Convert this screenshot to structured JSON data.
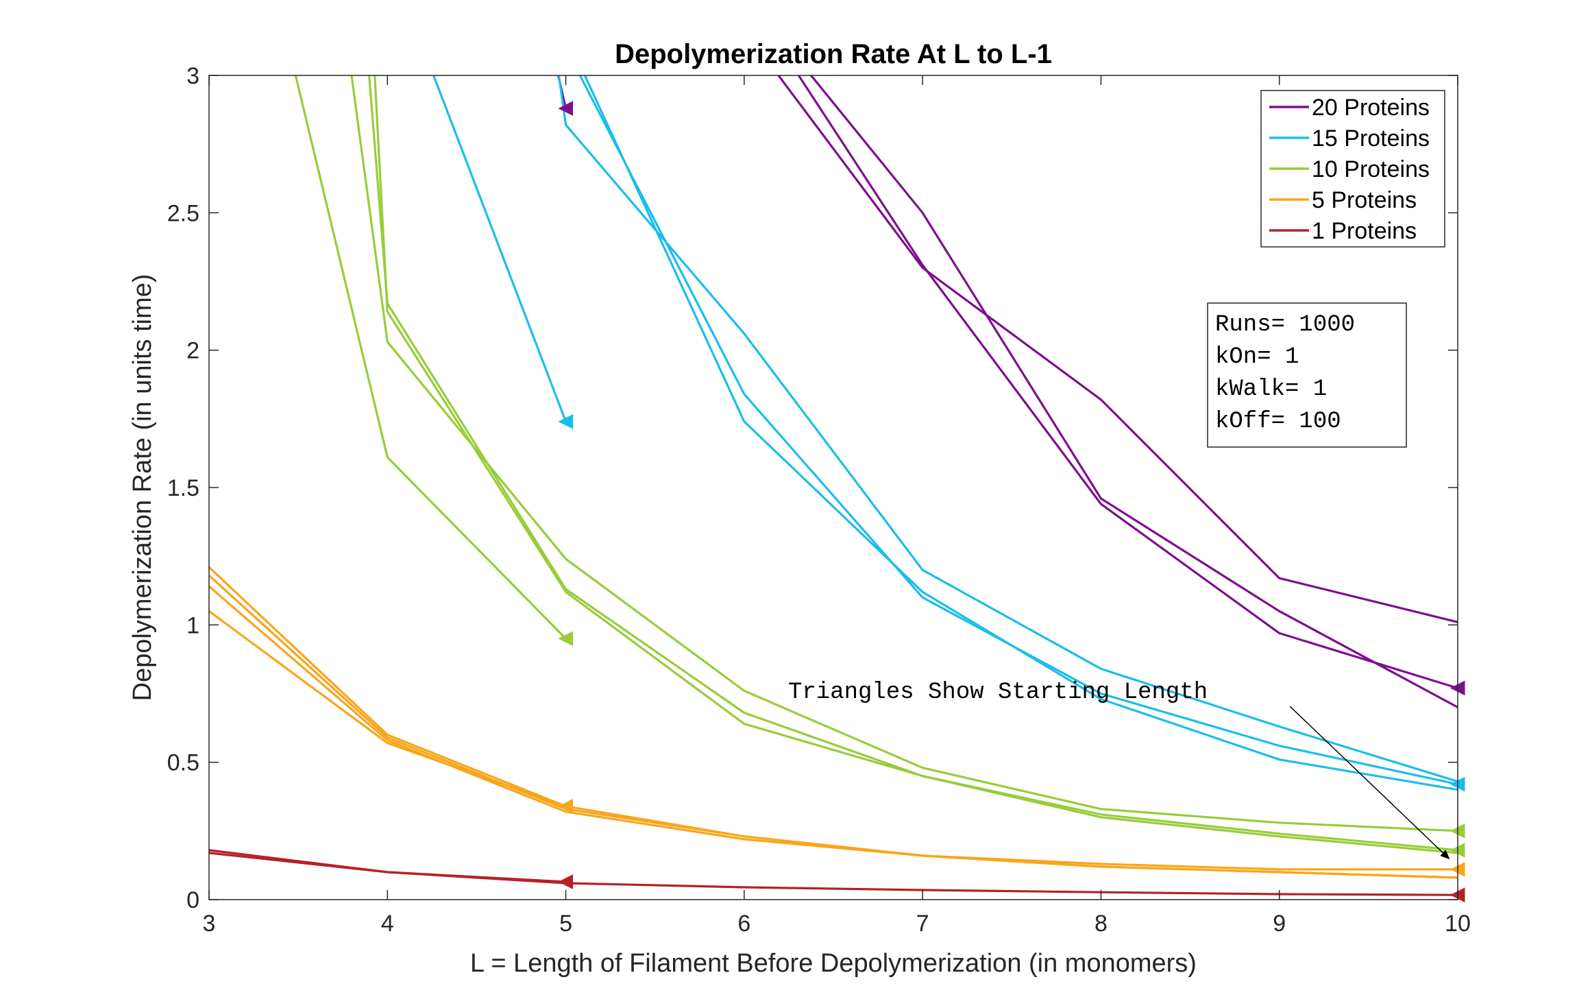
{
  "chart_data": {
    "type": "line",
    "title": "Depolymerization Rate At L to L-1",
    "xlabel": "L = Length of Filament Before Depolymerization (in monomers)",
    "ylabel": "Depolymerization Rate (in units time)",
    "xlim": [
      3,
      10
    ],
    "ylim": [
      0,
      3
    ],
    "xticks": [
      "3",
      "4",
      "5",
      "6",
      "7",
      "8",
      "9",
      "10"
    ],
    "yticks": [
      "0",
      "0.5",
      "1",
      "1.5",
      "2",
      "2.5",
      "3"
    ],
    "grid": false,
    "legend_position": "top-right",
    "legend": [
      {
        "label": "20 Proteins",
        "color": "#7E0F8E"
      },
      {
        "label": "15 Proteins",
        "color": "#1BBDEB"
      },
      {
        "label": "10 Proteins",
        "color": "#98CC39"
      },
      {
        "label": "5 Proteins",
        "color": "#F9A51A"
      },
      {
        "label": "1 Proteins",
        "color": "#B42128"
      }
    ],
    "params_box": [
      "Runs= 1000",
      "kOn= 1",
      "kWalk= 1",
      "kOff= 100"
    ],
    "annotation": {
      "text": "Triangles Show Starting Length",
      "arrow_to": [
        9.95,
        0.15
      ]
    },
    "series": [
      {
        "group": "20 Proteins",
        "color": "#7E0F8E",
        "x": [
          5.5,
          7,
          8,
          9,
          10
        ],
        "y": [
          3.6,
          2.3,
          1.82,
          1.17,
          1.01
        ],
        "start_marker": false
      },
      {
        "group": "20 Proteins",
        "color": "#7E0F8E",
        "x": [
          5.5,
          7,
          8,
          9,
          10
        ],
        "y": [
          3.7,
          2.5,
          1.46,
          1.05,
          0.7
        ],
        "start_marker": false
      },
      {
        "group": "20 Proteins",
        "color": "#7E0F8E",
        "x": [
          5.5,
          7,
          8,
          9,
          10
        ],
        "y": [
          3.8,
          2.31,
          1.44,
          0.97,
          0.77
        ],
        "start_marker": true
      },
      {
        "group": "20 Proteins",
        "color": "#7E0F8E",
        "x": [
          4.94,
          5
        ],
        "y": [
          3.05,
          2.88
        ],
        "start_marker": true
      },
      {
        "group": "15 Proteins",
        "color": "#1BBDEB",
        "x": [
          4.2,
          5
        ],
        "y": [
          3.1,
          1.74
        ],
        "start_marker": true
      },
      {
        "group": "15 Proteins",
        "color": "#1BBDEB",
        "x": [
          4.95,
          5,
          6,
          7,
          8,
          9,
          10
        ],
        "y": [
          3.05,
          2.82,
          2.06,
          1.2,
          0.84,
          0.63,
          0.43
        ],
        "start_marker": false
      },
      {
        "group": "15 Proteins",
        "color": "#1BBDEB",
        "x": [
          4.95,
          5,
          6,
          7,
          8,
          9,
          10
        ],
        "y": [
          3.3,
          3.1,
          1.84,
          1.1,
          0.75,
          0.56,
          0.42
        ],
        "start_marker": true
      },
      {
        "group": "15 Proteins",
        "color": "#1BBDEB",
        "x": [
          4.95,
          5,
          6,
          7,
          8,
          9,
          10
        ],
        "y": [
          3.35,
          3.15,
          1.74,
          1.12,
          0.73,
          0.51,
          0.4
        ],
        "start_marker": false
      },
      {
        "group": "10 Proteins",
        "color": "#98CC39",
        "x": [
          3.3,
          4,
          5
        ],
        "y": [
          3.5,
          1.61,
          0.95
        ],
        "start_marker": true
      },
      {
        "group": "10 Proteins",
        "color": "#98CC39",
        "x": [
          3.55,
          4,
          5,
          6,
          7,
          8,
          9,
          10
        ],
        "y": [
          4.2,
          2.03,
          1.24,
          0.76,
          0.48,
          0.33,
          0.28,
          0.25
        ],
        "start_marker": true
      },
      {
        "group": "10 Proteins",
        "color": "#98CC39",
        "x": [
          3.7,
          4,
          5,
          6,
          7,
          8,
          9,
          10
        ],
        "y": [
          4.6,
          2.17,
          1.13,
          0.68,
          0.45,
          0.31,
          0.24,
          0.18
        ],
        "start_marker": true
      },
      {
        "group": "10 Proteins",
        "color": "#98CC39",
        "x": [
          3.78,
          4,
          5,
          6,
          7,
          8,
          9,
          10
        ],
        "y": [
          4.8,
          2.14,
          1.12,
          0.64,
          0.45,
          0.3,
          0.23,
          0.17
        ],
        "start_marker": false
      },
      {
        "group": "5 Proteins",
        "color": "#F9A51A",
        "x": [
          3,
          4,
          5,
          6,
          7,
          8,
          9,
          10
        ],
        "y": [
          1.21,
          0.6,
          0.34,
          0.23,
          0.16,
          0.13,
          0.11,
          0.11
        ],
        "start_marker": true
      },
      {
        "group": "5 Proteins",
        "color": "#F9A51A",
        "x": [
          3,
          4,
          5,
          6,
          7,
          8,
          9,
          10
        ],
        "y": [
          1.18,
          0.59,
          0.33,
          0.23,
          0.16,
          0.12,
          0.1,
          0.08
        ],
        "start_marker": false
      },
      {
        "group": "5 Proteins",
        "color": "#F9A51A",
        "x": [
          3,
          4,
          5,
          6,
          7,
          8,
          9,
          10
        ],
        "y": [
          1.14,
          0.58,
          0.32,
          0.22,
          0.16,
          0.12,
          0.1,
          0.08
        ],
        "start_marker": false
      },
      {
        "group": "5 Proteins",
        "color": "#F9A51A",
        "x": [
          3,
          4,
          5
        ],
        "y": [
          1.05,
          0.57,
          0.34
        ],
        "start_marker": true
      },
      {
        "group": "1 Proteins",
        "color": "#B42128",
        "x": [
          3,
          4,
          5,
          6,
          7,
          8,
          9,
          10
        ],
        "y": [
          0.18,
          0.1,
          0.06,
          0.045,
          0.035,
          0.027,
          0.02,
          0.017
        ],
        "start_marker": true
      },
      {
        "group": "1 Proteins",
        "color": "#B42128",
        "x": [
          3,
          4,
          5
        ],
        "y": [
          0.17,
          0.1,
          0.065
        ],
        "start_marker": true
      }
    ]
  }
}
